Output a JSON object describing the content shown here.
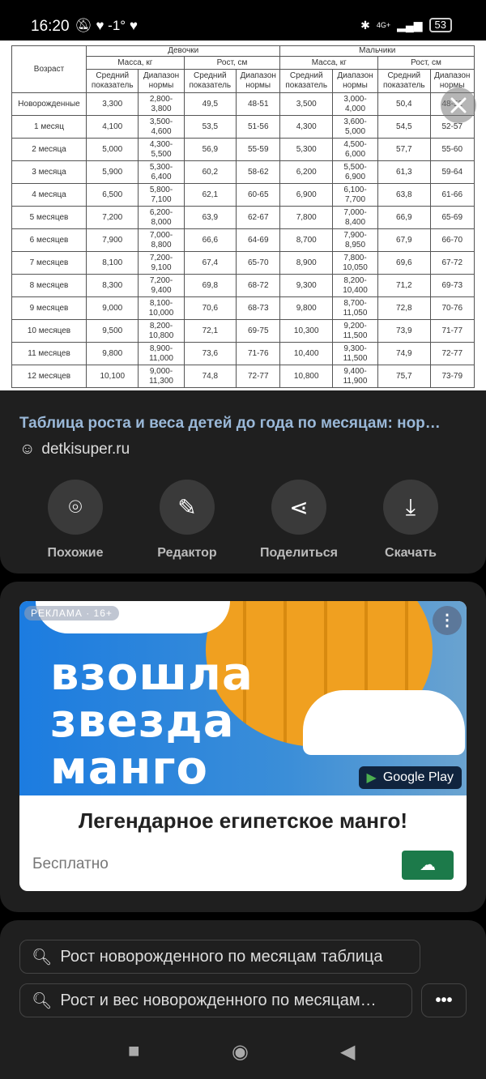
{
  "status": {
    "time": "16:20",
    "temp": "-1°",
    "network": "4G+",
    "battery": "53"
  },
  "table": {
    "col_age": "Возраст",
    "girls": "Девочки",
    "boys": "Мальчики",
    "mass": "Масса, кг",
    "height": "Рост, см",
    "avg": "Средний показатель",
    "range": "Диапазон нормы",
    "rows": [
      [
        "Новорожденные",
        "3,300",
        "2,800-3,800",
        "49,5",
        "48-51",
        "3,500",
        "3,000-4,000",
        "50,4",
        "48-52"
      ],
      [
        "1 месяц",
        "4,100",
        "3,500-4,600",
        "53,5",
        "51-56",
        "4,300",
        "3,600-5,000",
        "54,5",
        "52-57"
      ],
      [
        "2 месяца",
        "5,000",
        "4,300-5,500",
        "56,9",
        "55-59",
        "5,300",
        "4,500-6,000",
        "57,7",
        "55-60"
      ],
      [
        "3 месяца",
        "5,900",
        "5,300-6,400",
        "60,2",
        "58-62",
        "6,200",
        "5,500-6,900",
        "61,3",
        "59-64"
      ],
      [
        "4 месяца",
        "6,500",
        "5,800-7,100",
        "62,1",
        "60-65",
        "6,900",
        "6,100-7,700",
        "63,8",
        "61-66"
      ],
      [
        "5 месяцев",
        "7,200",
        "6,200-8,000",
        "63,9",
        "62-67",
        "7,800",
        "7,000-8,400",
        "66,9",
        "65-69"
      ],
      [
        "6 месяцев",
        "7,900",
        "7,000-8,800",
        "66,6",
        "64-69",
        "8,700",
        "7,900-8,950",
        "67,9",
        "66-70"
      ],
      [
        "7 месяцев",
        "8,100",
        "7,200-9,100",
        "67,4",
        "65-70",
        "8,900",
        "7,800-10,050",
        "69,6",
        "67-72"
      ],
      [
        "8 месяцев",
        "8,300",
        "7,200-9,400",
        "69,8",
        "68-72",
        "9,300",
        "8,200-10,400",
        "71,2",
        "69-73"
      ],
      [
        "9 месяцев",
        "9,000",
        "8,100-10,000",
        "70,6",
        "68-73",
        "9,800",
        "8,700-11,050",
        "72,8",
        "70-76"
      ],
      [
        "10 месяцев",
        "9,500",
        "8,200-10,800",
        "72,1",
        "69-75",
        "10,300",
        "9,200-11,500",
        "73,9",
        "71-77"
      ],
      [
        "11 месяцев",
        "9,800",
        "8,900-11,000",
        "73,6",
        "71-76",
        "10,400",
        "9,300-11,500",
        "74,9",
        "72-77"
      ],
      [
        "12 месяцев",
        "10,100",
        "9,000-11,300",
        "74,8",
        "72-77",
        "10,800",
        "9,400-11,900",
        "75,7",
        "73-79"
      ]
    ]
  },
  "result": {
    "title": "Таблица роста и веса детей до года по месяцам: нор…",
    "source": "detkisuper.ru"
  },
  "actions": [
    {
      "label": "Похожие",
      "icon": "lens-icon"
    },
    {
      "label": "Редактор",
      "icon": "pencil-icon"
    },
    {
      "label": "Поделиться",
      "icon": "share-icon"
    },
    {
      "label": "Скачать",
      "icon": "download-icon"
    }
  ],
  "ad": {
    "tag": "РЕКЛАМА · 16+",
    "slogan": "взошла звезда манго",
    "store": "Google Play",
    "headline": "Легендарное египетское манго!",
    "price": "Бесплатно"
  },
  "suggestions": [
    "Рост новорожденного по месяцам таблица",
    "Рост и вес новорожденного по месяцам…"
  ],
  "colors": {
    "title": "#9ab8d8",
    "download": "#1c7a4a",
    "ad_blue": "#1c7ce0"
  }
}
